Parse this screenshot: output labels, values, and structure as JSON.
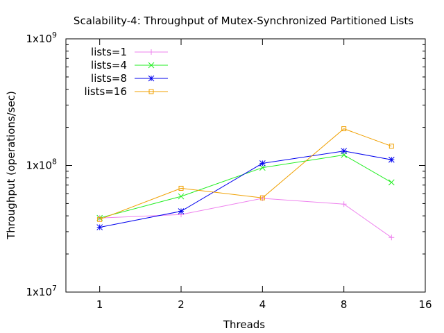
{
  "chart_data": {
    "type": "line",
    "title": "Scalability-4: Throughput of Mutex-Synchronized Partitioned Lists",
    "xlabel": "Threads",
    "ylabel": "Throughput (operations/sec)",
    "x_scale": "log2",
    "y_scale": "log10",
    "xlim": [
      0.75,
      16
    ],
    "ylim": [
      10000000,
      1000000000
    ],
    "x_ticks": [
      1,
      2,
      4,
      8,
      16
    ],
    "x_tick_labels": [
      "1",
      "2",
      "4",
      "8",
      "16"
    ],
    "y_ticks": [
      10000000,
      100000000,
      1000000000
    ],
    "y_tick_labels": [
      {
        "base": "1x10",
        "exp": "7"
      },
      {
        "base": "1x10",
        "exp": "8"
      },
      {
        "base": "1x10",
        "exp": "9"
      }
    ],
    "grid": false,
    "legend_position": "top-left",
    "x": [
      1,
      2,
      4,
      8,
      12
    ],
    "series": [
      {
        "name": "lists=1",
        "color": "#ee82ee",
        "marker": "plus",
        "values": [
          38500000,
          41000000,
          55000000,
          49500000,
          27000000
        ]
      },
      {
        "name": "lists=4",
        "color": "#22ee22",
        "marker": "cross",
        "values": [
          38500000,
          57000000,
          96000000,
          121000000,
          73500000
        ]
      },
      {
        "name": "lists=8",
        "color": "#0000ee",
        "marker": "star",
        "values": [
          32500000,
          43500000,
          104000000,
          130000000,
          111000000
        ]
      },
      {
        "name": "lists=16",
        "color": "#f0a000",
        "marker": "square",
        "values": [
          37500000,
          66000000,
          55500000,
          195000000,
          142000000
        ]
      }
    ]
  }
}
